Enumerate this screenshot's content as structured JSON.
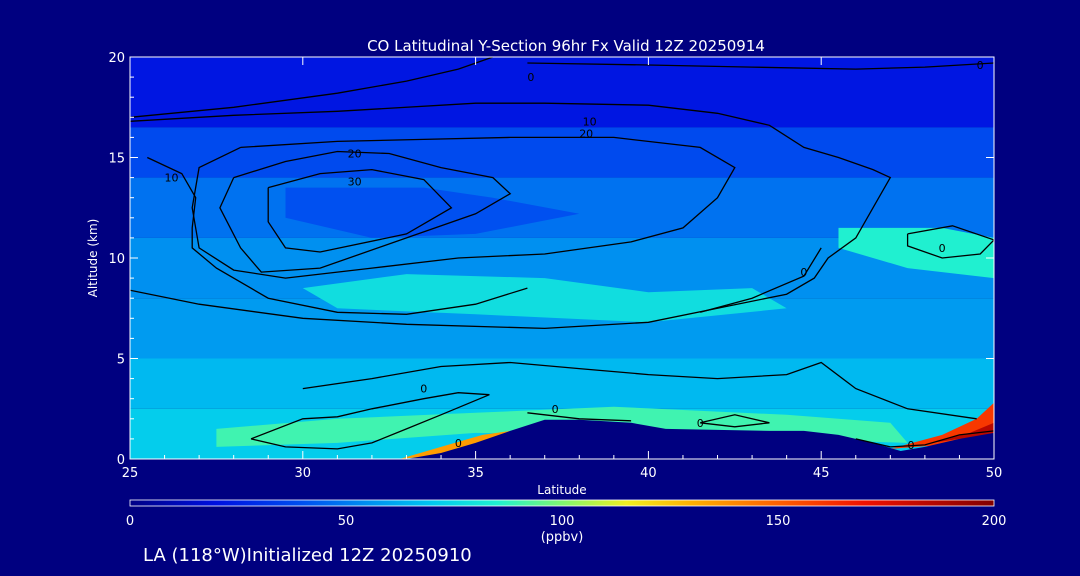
{
  "chart_data": {
    "type": "heatmap",
    "title": "CO Latitudinal Y-Section 96hr  Fx Valid 12Z 20250914",
    "xlabel": "Latitude",
    "ylabel": "Altitude (km)",
    "xlim": [
      25,
      50
    ],
    "ylim": [
      0,
      20
    ],
    "x_ticks": [
      "25",
      "30",
      "35",
      "40",
      "45",
      "50"
    ],
    "y_ticks": [
      "0",
      "5",
      "10",
      "15",
      "20"
    ],
    "colorbar": {
      "min": 0,
      "max": 200,
      "ticks": [
        "0",
        "50",
        "100",
        "150",
        "200"
      ],
      "units": "(ppbv)",
      "stops": [
        {
          "value": 0,
          "color": "#000085"
        },
        {
          "value": 20,
          "color": "#0010e0"
        },
        {
          "value": 40,
          "color": "#0050f0"
        },
        {
          "value": 55,
          "color": "#0090f0"
        },
        {
          "value": 70,
          "color": "#00c8f0"
        },
        {
          "value": 85,
          "color": "#20f0d0"
        },
        {
          "value": 100,
          "color": "#80f870"
        },
        {
          "value": 115,
          "color": "#f0f020"
        },
        {
          "value": 130,
          "color": "#ffb000"
        },
        {
          "value": 150,
          "color": "#ff6000"
        },
        {
          "value": 170,
          "color": "#f01000"
        },
        {
          "value": 200,
          "color": "#800000"
        }
      ]
    },
    "field_bands": [
      {
        "altitude_km": [
          16.5,
          20.0
        ],
        "latitude": [
          25,
          50
        ],
        "value": 22
      },
      {
        "altitude_km": [
          14.0,
          16.5
        ],
        "latitude": [
          25,
          50
        ],
        "value": 38
      },
      {
        "altitude_km": [
          11.0,
          14.0
        ],
        "latitude": [
          25,
          50
        ],
        "value": 48
      },
      {
        "altitude_km": [
          8.0,
          11.0
        ],
        "latitude": [
          25,
          50
        ],
        "value": 55
      },
      {
        "altitude_km": [
          5.0,
          8.0
        ],
        "latitude": [
          25,
          50
        ],
        "value": 58
      },
      {
        "altitude_km": [
          2.5,
          5.0
        ],
        "latitude": [
          25,
          50
        ],
        "value": 66
      },
      {
        "altitude_km": [
          0.0,
          2.5
        ],
        "latitude": [
          25,
          50
        ],
        "value": 72
      }
    ],
    "features": [
      {
        "name": "upper-core",
        "value": 40,
        "points": [
          [
            29.5,
            13.5
          ],
          [
            33.5,
            13.5
          ],
          [
            35.5,
            13.0
          ],
          [
            38.0,
            12.2
          ],
          [
            35.0,
            11.2
          ],
          [
            32.0,
            11.0
          ],
          [
            29.5,
            12.0
          ]
        ]
      },
      {
        "name": "mid-lobe",
        "value": 78,
        "points": [
          [
            30.0,
            8.5
          ],
          [
            33.0,
            9.2
          ],
          [
            37.0,
            9.0
          ],
          [
            40.0,
            8.3
          ],
          [
            43.0,
            8.5
          ],
          [
            44.0,
            7.5
          ],
          [
            40.0,
            6.8
          ],
          [
            35.0,
            7.2
          ],
          [
            31.0,
            7.5
          ]
        ]
      },
      {
        "name": "right-high",
        "value": 85,
        "points": [
          [
            45.5,
            11.5
          ],
          [
            48.5,
            11.5
          ],
          [
            50.0,
            11.0
          ],
          [
            50.0,
            9.0
          ],
          [
            47.5,
            9.5
          ],
          [
            45.5,
            10.5
          ]
        ]
      },
      {
        "name": "boundary-layer",
        "value": 90,
        "points": [
          [
            27.5,
            1.5
          ],
          [
            31.0,
            2.0
          ],
          [
            35.0,
            2.3
          ],
          [
            39.0,
            2.6
          ],
          [
            44.0,
            2.2
          ],
          [
            47.0,
            1.8
          ],
          [
            47.5,
            0.8
          ],
          [
            44.0,
            1.0
          ],
          [
            39.0,
            1.2
          ],
          [
            35.0,
            1.3
          ],
          [
            31.0,
            0.8
          ],
          [
            27.5,
            0.6
          ]
        ]
      },
      {
        "name": "surface-plume-35",
        "value": 135,
        "points": [
          [
            32.8,
            0.0
          ],
          [
            34.0,
            0.2
          ],
          [
            35.2,
            0.8
          ],
          [
            36.0,
            1.4
          ],
          [
            35.2,
            1.2
          ],
          [
            34.0,
            0.6
          ]
        ]
      },
      {
        "name": "surface-plume-50",
        "value": 160,
        "points": [
          [
            47.0,
            0.5
          ],
          [
            48.5,
            1.2
          ],
          [
            49.5,
            2.0
          ],
          [
            50.0,
            2.8
          ],
          [
            50.0,
            1.2
          ],
          [
            48.5,
            0.7
          ]
        ]
      },
      {
        "name": "surface-plume-50-core",
        "value": 185,
        "points": [
          [
            48.2,
            0.8
          ],
          [
            49.3,
            1.3
          ],
          [
            50.0,
            1.8
          ],
          [
            50.0,
            1.2
          ],
          [
            49.0,
            1.0
          ]
        ]
      }
    ],
    "terrain_km": [
      [
        33.0,
        0.0
      ],
      [
        34.0,
        0.3
      ],
      [
        35.0,
        0.8
      ],
      [
        36.0,
        1.4
      ],
      [
        37.0,
        1.95
      ],
      [
        38.0,
        1.95
      ],
      [
        39.5,
        1.8
      ],
      [
        40.5,
        1.5
      ],
      [
        42.0,
        1.45
      ],
      [
        43.5,
        1.4
      ],
      [
        44.5,
        1.4
      ],
      [
        45.5,
        1.2
      ],
      [
        46.5,
        0.8
      ],
      [
        47.3,
        0.4
      ],
      [
        48.0,
        0.6
      ],
      [
        49.0,
        1.0
      ],
      [
        50.0,
        1.3
      ],
      [
        50.0,
        0.0
      ]
    ],
    "contours": [
      {
        "level": "0",
        "label_at": [
          36.6,
          19.0
        ],
        "points": [
          [
            25.0,
            17.0
          ],
          [
            28.0,
            17.5
          ],
          [
            31.0,
            18.2
          ],
          [
            33.0,
            18.8
          ],
          [
            34.5,
            19.4
          ],
          [
            35.5,
            20.0
          ]
        ]
      },
      {
        "level": "0",
        "label_at": [
          49.6,
          19.6
        ],
        "points": [
          [
            36.5,
            19.7
          ],
          [
            40.0,
            19.6
          ],
          [
            43.0,
            19.5
          ],
          [
            46.0,
            19.4
          ],
          [
            48.0,
            19.5
          ],
          [
            50.0,
            19.7
          ]
        ]
      },
      {
        "level": "10",
        "label_at": [
          38.3,
          16.8
        ],
        "points": [
          [
            25.0,
            16.8
          ],
          [
            28.0,
            17.1
          ],
          [
            31.0,
            17.3
          ],
          [
            35.0,
            17.7
          ],
          [
            37.0,
            17.7
          ],
          [
            40.0,
            17.6
          ],
          [
            42.0,
            17.2
          ],
          [
            43.5,
            16.6
          ],
          [
            44.5,
            15.5
          ],
          [
            45.5,
            15.0
          ],
          [
            46.5,
            14.4
          ],
          [
            47.0,
            14.0
          ],
          [
            46.5,
            12.5
          ],
          [
            46.0,
            11.0
          ],
          [
            45.2,
            10.0
          ],
          [
            44.8,
            9.0
          ],
          [
            44.0,
            8.2
          ],
          [
            42.0,
            7.5
          ],
          [
            40.0,
            6.8
          ],
          [
            37.0,
            6.5
          ],
          [
            33.0,
            6.7
          ],
          [
            30.0,
            7.0
          ],
          [
            27.0,
            7.7
          ],
          [
            25.0,
            8.4
          ]
        ]
      },
      {
        "level": "10",
        "label_at": [
          26.2,
          14.0
        ],
        "points": [
          [
            25.5,
            15.0
          ],
          [
            26.5,
            14.2
          ],
          [
            26.9,
            13.0
          ],
          [
            26.8,
            11.5
          ],
          [
            26.8,
            10.5
          ],
          [
            27.5,
            9.5
          ],
          [
            29.0,
            8.0
          ],
          [
            31.0,
            7.3
          ],
          [
            33.0,
            7.2
          ],
          [
            35.0,
            7.7
          ],
          [
            36.5,
            8.5
          ]
        ]
      },
      {
        "level": "20",
        "label_at": [
          31.5,
          15.2
        ],
        "points": [
          [
            28.0,
            14.0
          ],
          [
            29.5,
            14.8
          ],
          [
            31.0,
            15.3
          ],
          [
            32.5,
            15.2
          ],
          [
            34.0,
            14.5
          ],
          [
            35.5,
            14.0
          ],
          [
            36.0,
            13.2
          ],
          [
            35.0,
            12.2
          ],
          [
            33.0,
            11.0
          ],
          [
            30.5,
            9.5
          ],
          [
            28.8,
            9.3
          ],
          [
            28.2,
            10.5
          ],
          [
            27.6,
            12.5
          ],
          [
            28.0,
            14.0
          ]
        ]
      },
      {
        "level": "20",
        "label_at": [
          38.2,
          16.2
        ],
        "points": [
          [
            28.2,
            15.5
          ],
          [
            31.0,
            15.8
          ],
          [
            33.5,
            15.9
          ],
          [
            36.0,
            16.0
          ],
          [
            39.0,
            16.0
          ],
          [
            41.5,
            15.5
          ],
          [
            42.5,
            14.5
          ],
          [
            42.0,
            13.0
          ],
          [
            41.0,
            11.5
          ],
          [
            39.5,
            10.8
          ],
          [
            37.0,
            10.2
          ],
          [
            34.5,
            10.0
          ],
          [
            32.0,
            9.5
          ],
          [
            29.5,
            9.0
          ],
          [
            28.0,
            9.4
          ],
          [
            27.0,
            10.5
          ],
          [
            26.8,
            12.5
          ],
          [
            27.0,
            14.5
          ],
          [
            28.2,
            15.5
          ]
        ]
      },
      {
        "level": "30",
        "label_at": [
          31.5,
          13.8
        ],
        "points": [
          [
            29.0,
            13.5
          ],
          [
            30.5,
            14.2
          ],
          [
            32.0,
            14.4
          ],
          [
            33.5,
            13.9
          ],
          [
            34.3,
            12.5
          ],
          [
            33.0,
            11.2
          ],
          [
            30.5,
            10.3
          ],
          [
            29.5,
            10.5
          ],
          [
            29.0,
            11.8
          ],
          [
            29.0,
            13.5
          ]
        ]
      },
      {
        "level": "0",
        "label_at": [
          48.5,
          10.5
        ],
        "points": [
          [
            47.5,
            11.2
          ],
          [
            48.8,
            11.6
          ],
          [
            50.0,
            10.9
          ],
          [
            49.6,
            10.2
          ],
          [
            48.5,
            10.0
          ],
          [
            47.5,
            10.6
          ],
          [
            47.5,
            11.2
          ]
        ]
      },
      {
        "level": "0",
        "label_at": [
          44.5,
          9.3
        ],
        "points": [
          [
            41.5,
            7.3
          ],
          [
            43.0,
            8.0
          ],
          [
            44.5,
            9.1
          ],
          [
            45.0,
            10.5
          ]
        ]
      },
      {
        "level": "0",
        "label_at": [
          33.5,
          3.5
        ],
        "points": [
          [
            30.0,
            3.5
          ],
          [
            32.0,
            4.0
          ],
          [
            34.0,
            4.6
          ],
          [
            36.0,
            4.8
          ],
          [
            38.0,
            4.5
          ],
          [
            40.0,
            4.2
          ],
          [
            42.0,
            4.0
          ],
          [
            44.0,
            4.2
          ],
          [
            45.0,
            4.8
          ],
          [
            46.0,
            3.5
          ],
          [
            47.5,
            2.5
          ],
          [
            49.5,
            2.0
          ]
        ]
      },
      {
        "level": "0",
        "label_at": [
          34.5,
          0.8
        ],
        "points": [
          [
            28.5,
            1.0
          ],
          [
            30.0,
            2.0
          ],
          [
            31.0,
            2.1
          ],
          [
            32.0,
            2.5
          ],
          [
            33.5,
            3.0
          ],
          [
            34.5,
            3.3
          ],
          [
            35.4,
            3.2
          ],
          [
            34.0,
            2.2
          ],
          [
            33.0,
            1.5
          ],
          [
            32.0,
            0.8
          ],
          [
            31.0,
            0.5
          ],
          [
            29.5,
            0.6
          ],
          [
            28.5,
            1.0
          ]
        ]
      },
      {
        "level": "0",
        "label_at": [
          37.3,
          2.5
        ],
        "points": [
          [
            36.5,
            2.3
          ],
          [
            38.0,
            2.0
          ],
          [
            39.5,
            1.9
          ]
        ]
      },
      {
        "level": "0",
        "label_at": [
          41.5,
          1.8
        ],
        "points": [
          [
            41.5,
            1.8
          ],
          [
            42.5,
            2.2
          ],
          [
            43.5,
            1.8
          ],
          [
            42.5,
            1.6
          ],
          [
            41.5,
            1.8
          ]
        ]
      },
      {
        "level": "0",
        "label_at": [
          47.6,
          0.7
        ],
        "points": [
          [
            46.0,
            1.0
          ],
          [
            47.0,
            0.6
          ],
          [
            48.0,
            0.7
          ],
          [
            49.0,
            1.2
          ],
          [
            50.0,
            1.4
          ]
        ]
      }
    ],
    "units": "(ppbv)"
  },
  "footer": {
    "location_text": "LA (118°W)Initialized 12Z 20250910"
  }
}
